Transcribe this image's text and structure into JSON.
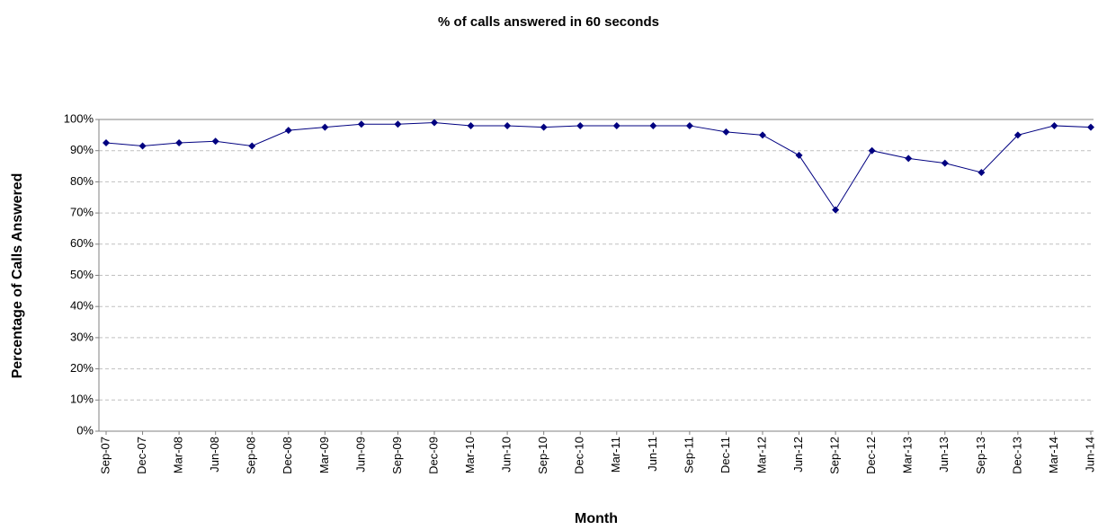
{
  "chart_data": {
    "type": "line",
    "title": "% of calls answered in 60 seconds",
    "xlabel": "Month",
    "ylabel": "Percentage of Calls Answered",
    "categories": [
      "Sep-07",
      "Dec-07",
      "Mar-08",
      "Jun-08",
      "Sep-08",
      "Dec-08",
      "Mar-09",
      "Jun-09",
      "Sep-09",
      "Dec-09",
      "Mar-10",
      "Jun-10",
      "Sep-10",
      "Dec-10",
      "Mar-11",
      "Jun-11",
      "Sep-11",
      "Dec-11",
      "Mar-12",
      "Jun-12",
      "Sep-12",
      "Dec-12",
      "Mar-13",
      "Jun-13",
      "Sep-13",
      "Dec-13",
      "Mar-14",
      "Jun-14"
    ],
    "values": [
      92.5,
      91.5,
      92.5,
      93,
      91.5,
      96.5,
      97.5,
      98.5,
      98.5,
      99,
      98,
      98,
      97.5,
      98,
      98,
      98,
      98,
      96,
      95,
      88.5,
      71,
      90,
      87.5,
      86,
      83,
      95,
      98,
      97.5
    ],
    "color": "#000080",
    "ylim": [
      0,
      100
    ],
    "yticks": [
      {
        "value": 0,
        "label": "0%"
      },
      {
        "value": 10,
        "label": "10%"
      },
      {
        "value": 20,
        "label": "20%"
      },
      {
        "value": 30,
        "label": "30%"
      },
      {
        "value": 40,
        "label": "40%"
      },
      {
        "value": 50,
        "label": "50%"
      },
      {
        "value": 60,
        "label": "60%"
      },
      {
        "value": 70,
        "label": "70%"
      },
      {
        "value": 80,
        "label": "80%"
      },
      {
        "value": 90,
        "label": "90%"
      },
      {
        "value": 100,
        "label": "100%"
      }
    ],
    "grid": true
  }
}
